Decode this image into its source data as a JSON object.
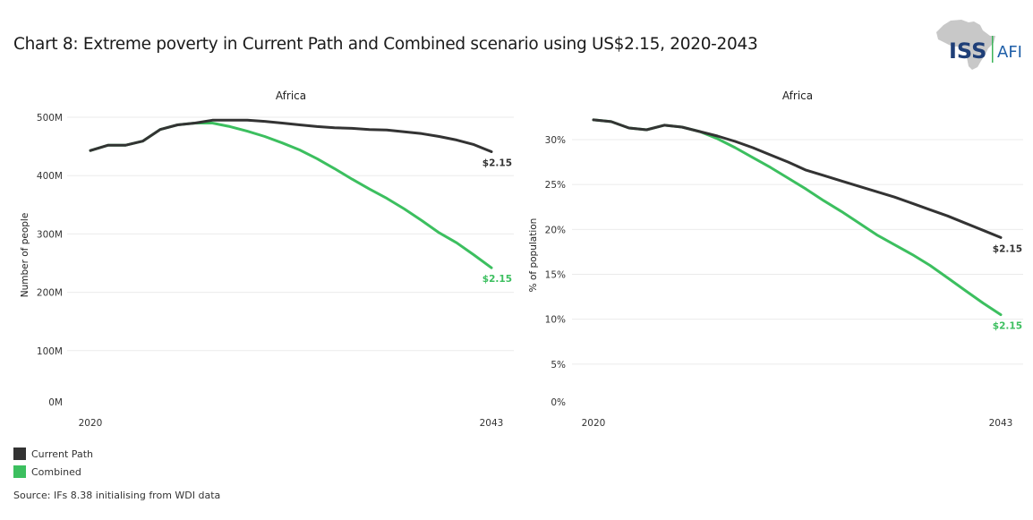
{
  "title": "Chart 8: Extreme poverty in Current Path and Combined scenario using US$2.15, 2020-2043",
  "logo": {
    "left_text": "ISS",
    "right_text": "AFI",
    "icon": "africa-map-icon",
    "colors": {
      "map": "#c8c8c8",
      "iss": "#1f3f78",
      "afi": "#1f5fa8",
      "divider": "#3cb55a"
    }
  },
  "legend": [
    {
      "label": "Current Path",
      "color": "#333333"
    },
    {
      "label": "Combined",
      "color": "#3cbf5f"
    }
  ],
  "source": "Source: IFs 8.38 initialising from WDI data",
  "chart_data": [
    {
      "type": "line",
      "title": "Africa",
      "xlabel": "",
      "ylabel": "Number of people",
      "x": [
        2020,
        2021,
        2022,
        2023,
        2024,
        2025,
        2026,
        2027,
        2028,
        2029,
        2030,
        2031,
        2032,
        2033,
        2034,
        2035,
        2036,
        2037,
        2038,
        2039,
        2040,
        2041,
        2042,
        2043
      ],
      "x_ticks": [
        "2020",
        "2043"
      ],
      "y_ticks": [
        0,
        100,
        200,
        300,
        400,
        500
      ],
      "y_tick_labels": [
        "0M",
        "100M",
        "200M",
        "300M",
        "400M",
        "500M"
      ],
      "ylim": [
        0,
        500
      ],
      "units": "millions of people",
      "grid": true,
      "series": [
        {
          "name": "Current Path",
          "color": "#333333",
          "end_label": "$2.15",
          "values": [
            443,
            452,
            452,
            459,
            479,
            487,
            490,
            495,
            495,
            495,
            493,
            490,
            487,
            484,
            482,
            481,
            479,
            478,
            475,
            472,
            467,
            461,
            453,
            441
          ]
        },
        {
          "name": "Combined",
          "color": "#3cbf5f",
          "end_label": "$2.15",
          "values": [
            443,
            452,
            452,
            459,
            479,
            487,
            490,
            490,
            484,
            476,
            467,
            456,
            444,
            429,
            412,
            394,
            377,
            361,
            343,
            323,
            302,
            285,
            264,
            242
          ]
        }
      ]
    },
    {
      "type": "line",
      "title": "Africa",
      "xlabel": "",
      "ylabel": "% of population",
      "x": [
        2020,
        2021,
        2022,
        2023,
        2024,
        2025,
        2026,
        2027,
        2028,
        2029,
        2030,
        2031,
        2032,
        2033,
        2034,
        2035,
        2036,
        2037,
        2038,
        2039,
        2040,
        2041,
        2042,
        2043
      ],
      "x_ticks": [
        "2020",
        "2043"
      ],
      "y_ticks": [
        0,
        5,
        10,
        15,
        20,
        25,
        30
      ],
      "y_tick_labels": [
        "0%",
        "5%",
        "10%",
        "15%",
        "20%",
        "25%",
        "30%"
      ],
      "ylim": [
        0,
        30
      ],
      "units": "percent",
      "grid": true,
      "series": [
        {
          "name": "Current Path",
          "color": "#333333",
          "end_label": "$2.15",
          "values": [
            32.2,
            32.0,
            31.3,
            31.1,
            31.6,
            31.4,
            30.9,
            30.4,
            29.8,
            29.1,
            28.3,
            27.5,
            26.6,
            26.0,
            25.4,
            24.8,
            24.2,
            23.6,
            22.9,
            22.2,
            21.5,
            20.7,
            19.9,
            19.1
          ]
        },
        {
          "name": "Combined",
          "color": "#3cbf5f",
          "end_label": "$2.15",
          "values": [
            32.2,
            32.0,
            31.3,
            31.1,
            31.6,
            31.4,
            30.9,
            30.1,
            29.1,
            28.0,
            26.9,
            25.7,
            24.5,
            23.2,
            22.0,
            20.7,
            19.4,
            18.3,
            17.2,
            16.0,
            14.6,
            13.2,
            11.8,
            10.5
          ]
        }
      ]
    }
  ]
}
